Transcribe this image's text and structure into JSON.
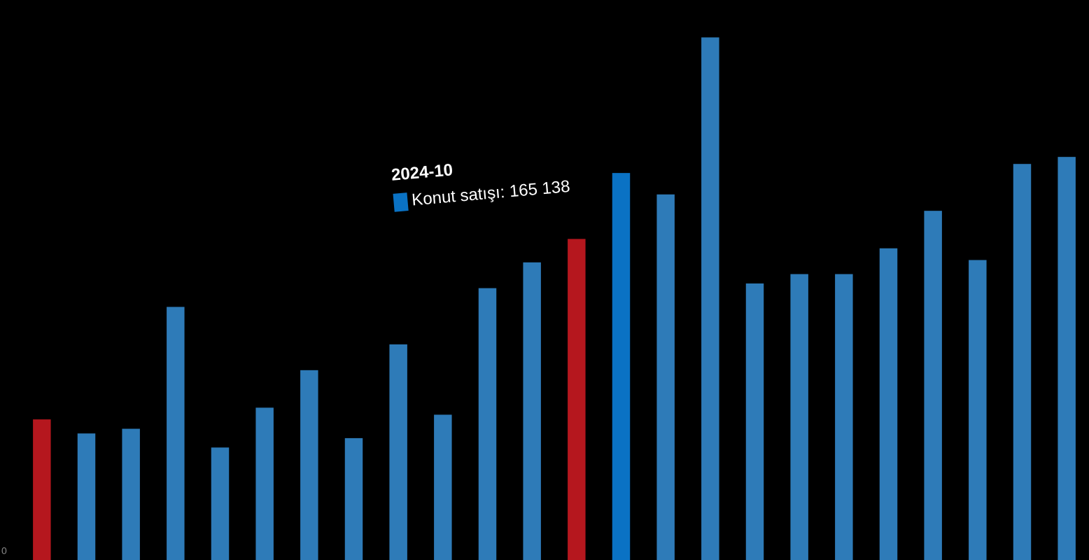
{
  "chart_data": {
    "type": "bar",
    "categories": [
      null,
      null,
      null,
      null,
      null,
      null,
      null,
      null,
      null,
      null,
      null,
      null,
      null,
      "2024-10",
      null,
      null,
      null,
      null,
      null,
      null,
      null,
      null,
      null,
      null
    ],
    "series": [
      {
        "name": "Konut satışı",
        "colors": [
          "#b5171e",
          "#2e7bb8",
          "#2e7bb8",
          "#2e7bb8",
          "#2e7bb8",
          "#2e7bb8",
          "#2e7bb8",
          "#2e7bb8",
          "#2e7bb8",
          "#2e7bb8",
          "#2e7bb8",
          "#2e7bb8",
          "#b5171e",
          "#0a72c4",
          "#2e7bb8",
          "#2e7bb8",
          "#2e7bb8",
          "#2e7bb8",
          "#2e7bb8",
          "#2e7bb8",
          "#2e7bb8",
          "#2e7bb8",
          "#2e7bb8",
          "#2e7bb8"
        ],
        "values": [
          60000,
          54000,
          56000,
          108000,
          48000,
          65000,
          81000,
          52000,
          92000,
          62000,
          116000,
          127000,
          137000,
          165138,
          156000,
          223000,
          118000,
          122000,
          122000,
          133000,
          149000,
          128000,
          169000,
          172000
        ],
        "value_labels": [
          null,
          null,
          null,
          null,
          null,
          null,
          null,
          null,
          null,
          null,
          null,
          null,
          null,
          "165 138",
          null,
          null,
          null,
          null,
          null,
          null,
          null,
          null,
          null,
          null
        ]
      }
    ],
    "ylim": [
      0,
      230000
    ],
    "yticks": [
      0
    ],
    "grid": false
  }
}
